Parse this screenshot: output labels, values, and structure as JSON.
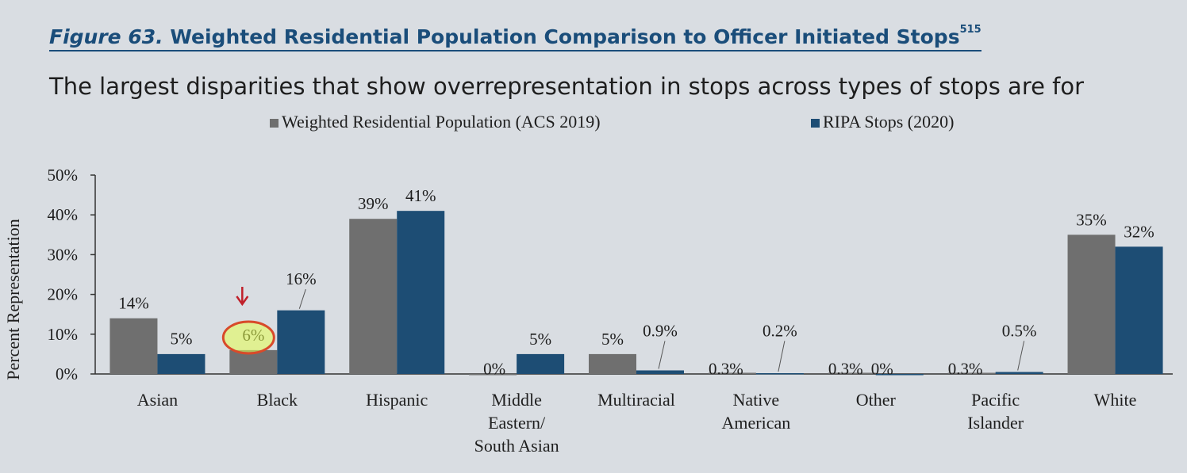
{
  "figure": {
    "number": "Figure 63.",
    "title": "Weighted Residential Population Comparison to Officer Initiated Stops",
    "footnote": "515",
    "subtitle": "The largest disparities that show overrepresentation in stops across types of stops are for"
  },
  "chart_data": {
    "type": "bar",
    "ylabel": "Percent Representation",
    "ylim": [
      0,
      50
    ],
    "yticks": [
      "0%",
      "10%",
      "20%",
      "30%",
      "40%",
      "50%"
    ],
    "categories": [
      "Asian",
      "Black",
      "Hispanic",
      "Middle Eastern/ South Asian",
      "Multiracial",
      "Native American",
      "Other",
      "Pacific Islander",
      "White"
    ],
    "series": [
      {
        "name": "Weighted Residential Population (ACS 2019)",
        "color": "#6f6f6f",
        "values": [
          14,
          6,
          39,
          0,
          5,
          0.3,
          0.3,
          0.3,
          35
        ],
        "labels": [
          "14%",
          "6%",
          "39%",
          "0%",
          "5%",
          "0.3%",
          "0.3%",
          "0.3%",
          "35%"
        ]
      },
      {
        "name": "RIPA Stops (2020)",
        "color": "#1d4d74",
        "values": [
          5,
          16,
          41,
          5,
          0.9,
          0.2,
          0,
          0.5,
          32
        ],
        "labels": [
          "5%",
          "16%",
          "41%",
          "5%",
          "0.9%",
          "0.2%",
          "0%",
          "0.5%",
          "32%"
        ]
      }
    ],
    "legend": "top",
    "grid": false,
    "annotation": {
      "category": "Black",
      "text": "6%",
      "marker": "circled with arrow"
    }
  }
}
